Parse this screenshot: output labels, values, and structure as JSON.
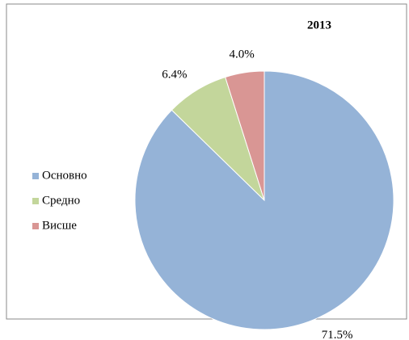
{
  "chart_data": {
    "type": "pie",
    "title": "2013",
    "categories": [
      "Основно",
      "Средно",
      "Висше"
    ],
    "values": [
      71.5,
      6.4,
      4.0
    ],
    "value_labels": [
      "71.5%",
      "6.4%",
      "4.0%"
    ],
    "colors": [
      "#95b3d7",
      "#c3d69b",
      "#d99694"
    ],
    "legend": "left"
  }
}
